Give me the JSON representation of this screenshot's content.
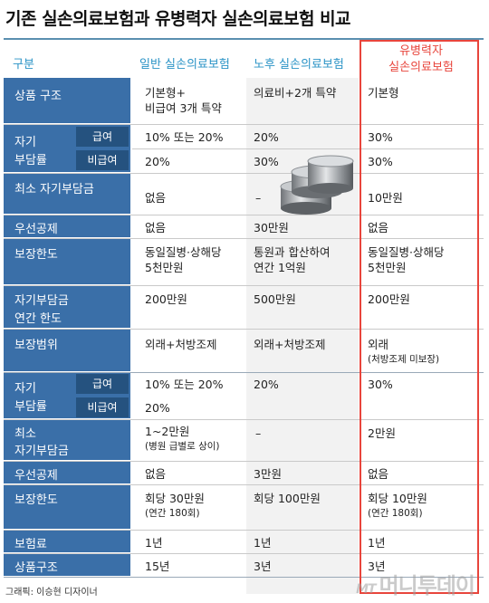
{
  "title": "기존 실손의료보험과 유병력자 실손의료보험 비교",
  "headers": {
    "col0": "구분",
    "col1": "일반 실손의료보험",
    "col2": "노후 실손의료보험",
    "col3_line1": "유병력자",
    "col3_line2": "실손의료보험"
  },
  "rows": {
    "product": {
      "label": "상품 구조",
      "c1a": "기본형+",
      "c1b": "비급여 3개 특약",
      "c2": "의료비+2개 특약",
      "c3": "기본형"
    },
    "copay1": {
      "label1": "자기",
      "label2": "부담률",
      "sub1": "급여",
      "sub2": "비급여",
      "c1a": "10% 또는 20%",
      "c1b": "20%",
      "c2a": "20%",
      "c2b": "30%",
      "c3a": "30%",
      "c3b": "30%"
    },
    "mincopay1": {
      "label": "최소 자기부담금",
      "c1": "없음",
      "c2": "–",
      "c3": "10만원"
    },
    "deduct1": {
      "label": "우선공제",
      "c1": "없음",
      "c2": "30만원",
      "c3": "없음"
    },
    "limit1": {
      "label": "보장한도",
      "c1a": "동일질병·상해당",
      "c1b": "5천만원",
      "c2a": "통원과 합산하여",
      "c2b": "연간 1억원",
      "c3a": "동일질병·상해당",
      "c3b": "5천만원"
    },
    "annual": {
      "label1": "자기부담금",
      "label2": "연간 한도",
      "c1": "200만원",
      "c2": "500만원",
      "c3": "200만원"
    },
    "scope": {
      "label": "보장범위",
      "c1": "외래+처방조제",
      "c2": "외래+처방조제",
      "c3a": "외래",
      "c3b": "(처방조제 미보장)"
    },
    "copay2": {
      "label1": "자기",
      "label2": "부담률",
      "sub1": "급여",
      "sub2": "비급여",
      "c1a": "10% 또는 20%",
      "c1b": "20%",
      "c2": "20%",
      "c3": "30%"
    },
    "mincopay2": {
      "label1": "최소",
      "label2": "자기부담금",
      "c1a": "1~2만원",
      "c1b": "(병원 급별로 상이)",
      "c2": "–",
      "c3": "2만원"
    },
    "deduct2": {
      "label": "우선공제",
      "c1": "없음",
      "c2": "3만원",
      "c3": "없음"
    },
    "limit2": {
      "label": "보장한도",
      "c1a": "회당 30만원",
      "c1b": "(연간 180회)",
      "c2": "회당 100만원",
      "c3a": "회당 10만원",
      "c3b": "(연간 180회)"
    },
    "premium": {
      "label": "보험료",
      "c1": "1년",
      "c2": "1년",
      "c3": "1년"
    },
    "structure": {
      "label": "상품구조",
      "c1": "15년",
      "c2": "3년",
      "c3": "3년"
    }
  },
  "footer": "그래픽: 이승현 디자이너",
  "watermark_prefix": "MT",
  "watermark": "머니투데이",
  "colors": {
    "label_blue": "#3a6fa8",
    "sublabel_blue": "#25527f",
    "header_blue": "#2a93c6",
    "highlight_red": "#e8453c"
  }
}
